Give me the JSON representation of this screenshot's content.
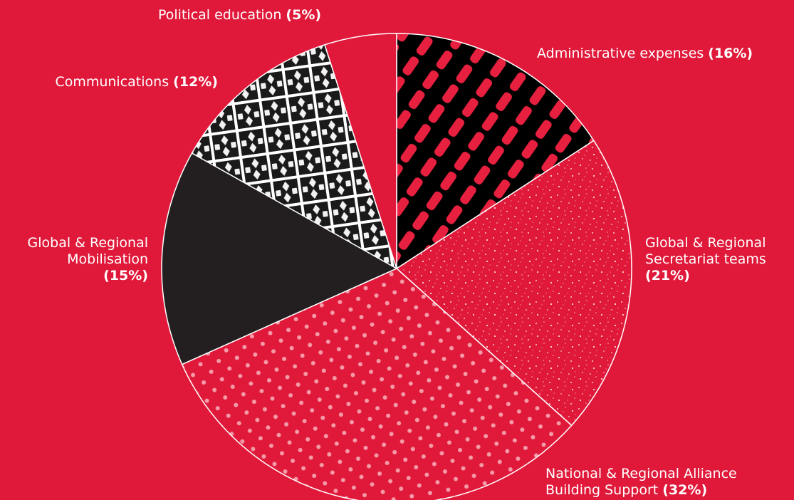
{
  "chart_data": {
    "type": "pie",
    "title": "",
    "start_angle_deg": 0,
    "direction": "clockwise",
    "slices": [
      {
        "label_lines": [
          "Administrative expenses"
        ],
        "pct_text": "(16%)",
        "value": 16,
        "color": "#000000",
        "pattern": "red-dashes"
      },
      {
        "label_lines": [
          "Global & Regional",
          "Secretariat teams"
        ],
        "pct_text": "(21%)",
        "value": 21,
        "color": "#e0193a",
        "pattern": "white-speckle"
      },
      {
        "label_lines": [
          "National & Regional Alliance",
          "Building Support"
        ],
        "pct_text": "(32%)",
        "value": 32,
        "color": "#e0193a",
        "pattern": "pink-dots"
      },
      {
        "label_lines": [
          "Global & Regional",
          "Mobilisation"
        ],
        "pct_text": "(15%)",
        "value": 15,
        "color": "#231f20",
        "pattern": "none"
      },
      {
        "label_lines": [
          "Communications"
        ],
        "pct_text": "(12%)",
        "value": 12,
        "color": "#1a1a1a",
        "pattern": "black-white-lattice"
      },
      {
        "label_lines": [
          "Political education"
        ],
        "pct_text": "(5%)",
        "value": 5,
        "color": "#e0193a",
        "pattern": "none"
      }
    ]
  },
  "colors": {
    "background": "#e0193a",
    "slice_border": "#ffffff",
    "label_text": "#ffffff"
  }
}
